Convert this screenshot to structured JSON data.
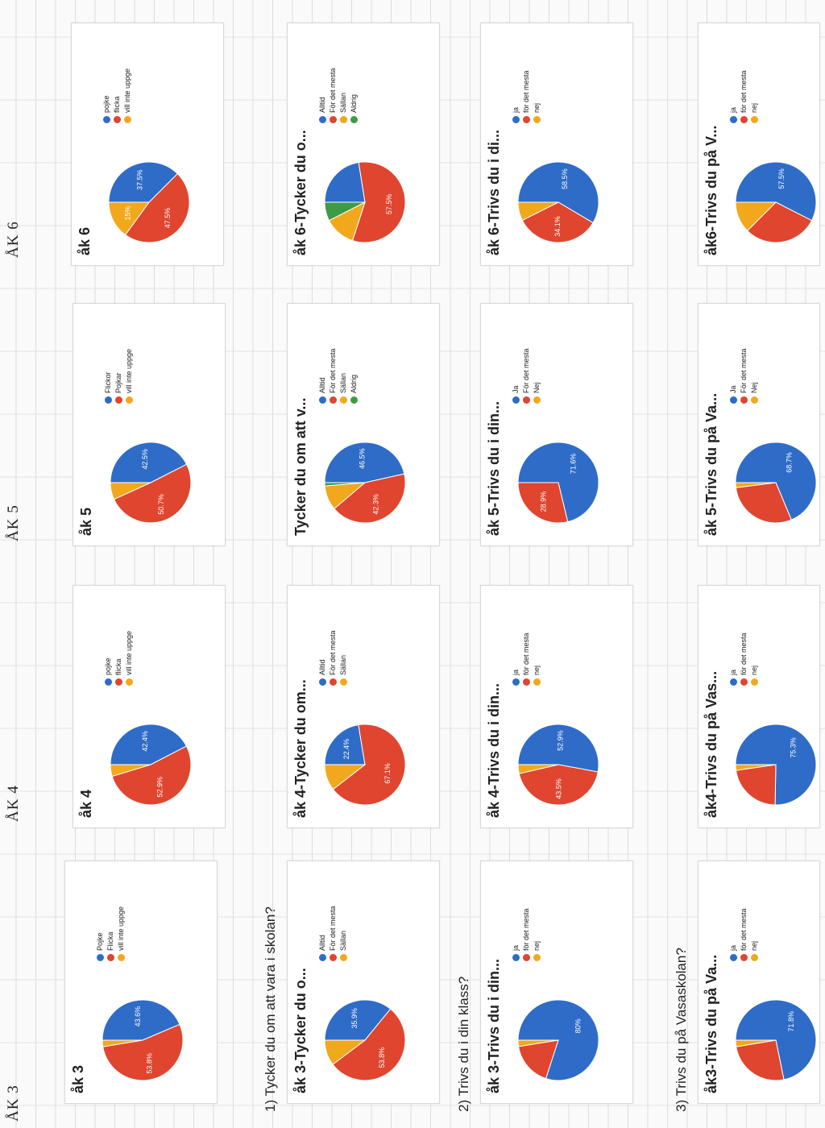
{
  "grade_headers": [
    {
      "label": "ÅK 3"
    },
    {
      "label": "ÅK 4"
    },
    {
      "label": "ÅK 5"
    },
    {
      "label": "ÅK 6"
    }
  ],
  "questions": [
    {
      "text": "1) Tycker du om att vara i skolan?"
    },
    {
      "text": "2) Trivs du i din klass?"
    },
    {
      "text": "3) Trivs du på Vasaskolan?"
    }
  ],
  "colors": {
    "blue": "#2e6cc8",
    "red": "#e0452f",
    "orange": "#f2a81d",
    "green": "#3e9a45"
  },
  "chart_data": [
    {
      "type": "pie",
      "title": "åk 3",
      "categories": [
        "Pojke",
        "Flicka",
        "vill inte uppge"
      ],
      "values": [
        43.6,
        53.8,
        2.6
      ],
      "labels": [
        "43.6%",
        "53.8%",
        ""
      ],
      "colors": [
        "#2e6cc8",
        "#e0452f",
        "#f2a81d"
      ]
    },
    {
      "type": "pie",
      "title": "åk 4",
      "categories": [
        "pojke",
        "flicka",
        "vill inte uppge"
      ],
      "values": [
        42.4,
        52.9,
        4.7
      ],
      "labels": [
        "42.4%",
        "52.9%",
        ""
      ],
      "colors": [
        "#2e6cc8",
        "#e0452f",
        "#f2a81d"
      ]
    },
    {
      "type": "pie",
      "title": "åk 5",
      "categories": [
        "Flickor",
        "Pojkar",
        "vill inte uppge"
      ],
      "values": [
        42.5,
        50.7,
        6.8
      ],
      "labels": [
        "42.5%",
        "50.7%",
        ""
      ],
      "colors": [
        "#2e6cc8",
        "#e0452f",
        "#f2a81d"
      ]
    },
    {
      "type": "pie",
      "title": "åk 6",
      "categories": [
        "pojke",
        "flicka",
        "vill inte uppge"
      ],
      "values": [
        37.5,
        47.5,
        15
      ],
      "labels": [
        "37.5%",
        "47.5%",
        "15%"
      ],
      "colors": [
        "#2e6cc8",
        "#e0452f",
        "#f2a81d"
      ]
    },
    {
      "type": "pie",
      "title": "åk 3-Tycker du o...",
      "categories": [
        "Alltid",
        "För det mesta",
        "Sällan"
      ],
      "values": [
        35.9,
        53.8,
        10.3
      ],
      "labels": [
        "35.9%",
        "53.8%",
        ""
      ],
      "colors": [
        "#2e6cc8",
        "#e0452f",
        "#f2a81d"
      ]
    },
    {
      "type": "pie",
      "title": "åk 4-Tycker du om...",
      "categories": [
        "Alltid",
        "För det mesta",
        "Sällan"
      ],
      "values": [
        22.4,
        67.1,
        10.5
      ],
      "labels": [
        "22.4%",
        "67.1%",
        ""
      ],
      "colors": [
        "#2e6cc8",
        "#e0452f",
        "#f2a81d"
      ]
    },
    {
      "type": "pie",
      "title": "Tycker du om att v...",
      "categories": [
        "Alltid",
        "För det mesta",
        "Sällan",
        "Aldrig"
      ],
      "values": [
        46.5,
        42.3,
        9.9,
        1.3
      ],
      "labels": [
        "46.5%",
        "42.3%",
        "",
        ""
      ],
      "colors": [
        "#2e6cc8",
        "#e0452f",
        "#f2a81d",
        "#3e9a45"
      ]
    },
    {
      "type": "pie",
      "title": "åk 6-Tycker du o...",
      "categories": [
        "Alltid",
        "För det mesta",
        "Sällan",
        "Aldrig"
      ],
      "values": [
        22.5,
        57.5,
        12.5,
        7.5
      ],
      "labels": [
        "",
        "57.5%",
        "",
        ""
      ],
      "colors": [
        "#2e6cc8",
        "#e0452f",
        "#f2a81d",
        "#3e9a45"
      ]
    },
    {
      "type": "pie",
      "title": "åk 3-Trivs du i din...",
      "categories": [
        "ja",
        "för det mesta",
        "nej"
      ],
      "values": [
        80,
        17.5,
        2.5
      ],
      "labels": [
        "80%",
        "",
        ""
      ],
      "colors": [
        "#2e6cc8",
        "#e0452f",
        "#f2a81d"
      ]
    },
    {
      "type": "pie",
      "title": "åk 4-Trivs du i din...",
      "categories": [
        "ja",
        "för det mesta",
        "nej"
      ],
      "values": [
        52.9,
        43.5,
        3.6
      ],
      "labels": [
        "52.9%",
        "43.5%",
        ""
      ],
      "colors": [
        "#2e6cc8",
        "#e0452f",
        "#f2a81d"
      ]
    },
    {
      "type": "pie",
      "title": "åk 5-Trivs du i din...",
      "categories": [
        "Ja",
        "För det mesta",
        "Nej"
      ],
      "values": [
        71.6,
        28.9,
        0
      ],
      "labels": [
        "71.6%",
        "28.9%",
        ""
      ],
      "colors": [
        "#2e6cc8",
        "#e0452f",
        "#f2a81d"
      ]
    },
    {
      "type": "pie",
      "title": "åk 6-Trivs du i di...",
      "categories": [
        "ja",
        "för det mesta",
        "nej"
      ],
      "values": [
        58.5,
        34.1,
        7.4
      ],
      "labels": [
        "58.5%",
        "34.1%",
        ""
      ],
      "colors": [
        "#2e6cc8",
        "#e0452f",
        "#f2a81d"
      ]
    },
    {
      "type": "pie",
      "title": "åk3-Trivs du på Va...",
      "categories": [
        "ja",
        "för det mesta",
        "nej"
      ],
      "values": [
        71.8,
        25.6,
        2.6
      ],
      "labels": [
        "71.8%",
        "",
        ""
      ],
      "colors": [
        "#2e6cc8",
        "#e0452f",
        "#f2a81d"
      ]
    },
    {
      "type": "pie",
      "title": "åk4-Trivs du på Vas...",
      "categories": [
        "ja",
        "för det mesta",
        "nej"
      ],
      "values": [
        75.3,
        22.4,
        2.3
      ],
      "labels": [
        "75.3%",
        "",
        ""
      ],
      "colors": [
        "#2e6cc8",
        "#e0452f",
        "#f2a81d"
      ]
    },
    {
      "type": "pie",
      "title": "åk 5-Trivs du på Va...",
      "categories": [
        "Ja",
        "För det mesta",
        "Nej"
      ],
      "values": [
        68.7,
        29.3,
        2
      ],
      "labels": [
        "68.7%",
        "",
        ""
      ],
      "colors": [
        "#2e6cc8",
        "#e0452f",
        "#f2a81d"
      ]
    },
    {
      "type": "pie",
      "title": "åk6-Trivs du på V...",
      "categories": [
        "ja",
        "för det mesta",
        "nej"
      ],
      "values": [
        57.5,
        30,
        12.5
      ],
      "labels": [
        "57.5%",
        "",
        ""
      ],
      "colors": [
        "#2e6cc8",
        "#e0452f",
        "#f2a81d"
      ]
    }
  ]
}
